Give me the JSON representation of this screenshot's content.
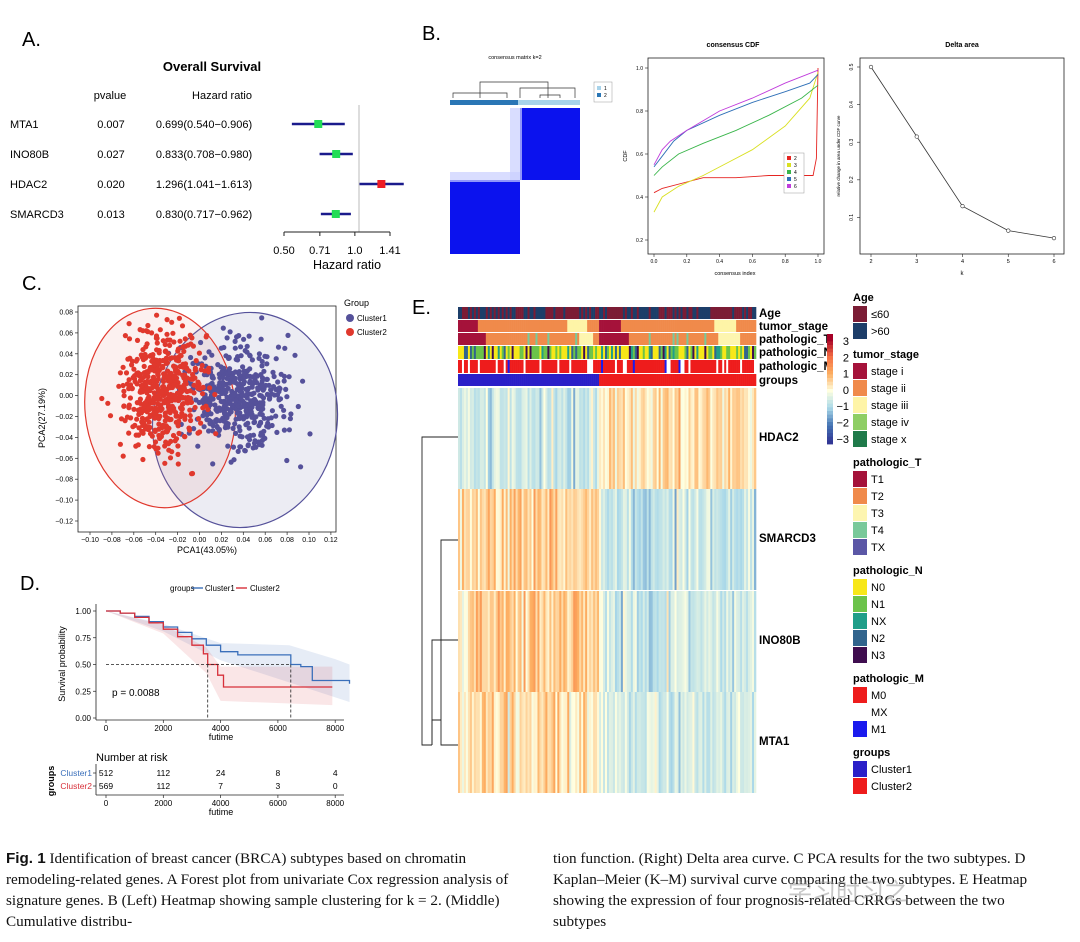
{
  "panels": {
    "A": {
      "letter": "A.",
      "title": "Overall Survival",
      "col_pvalue": "pvalue",
      "col_hr": "Hazard ratio",
      "rows": [
        {
          "gene": "MTA1",
          "pvalue": "0.007",
          "hr_text": "0.699(0.540−0.906)",
          "hr": 0.699,
          "lo": 0.54,
          "hi": 0.906,
          "color": "#22dd55"
        },
        {
          "gene": "INO80B",
          "pvalue": "0.027",
          "hr_text": "0.833(0.708−0.980)",
          "hr": 0.833,
          "lo": 0.708,
          "hi": 0.98,
          "color": "#22dd55"
        },
        {
          "gene": "HDAC2",
          "pvalue": "0.020",
          "hr_text": "1.296(1.041−1.613)",
          "hr": 1.296,
          "lo": 1.041,
          "hi": 1.613,
          "color": "#ee1c24"
        },
        {
          "gene": "SMARCD3",
          "pvalue": "0.013",
          "hr_text": "0.830(0.717−0.962)",
          "hr": 0.83,
          "lo": 0.717,
          "hi": 0.962,
          "color": "#22dd55"
        }
      ],
      "xticks": [
        "0.50",
        "0.71",
        "1.0",
        "1.41"
      ],
      "xtick_values": [
        0.5,
        0.71,
        1.0,
        1.41
      ],
      "xlabel": "Hazard ratio"
    },
    "B": {
      "letter": "B.",
      "heatmap_title": "consensus matrix k=2",
      "legend": [
        "1",
        "2"
      ],
      "cdf": {
        "title": "consensus CDF",
        "xlabel": "consensus index",
        "ylabel": "CDF",
        "xticks": [
          "0.0",
          "0.2",
          "0.4",
          "0.6",
          "0.8",
          "1.0"
        ],
        "yticks": [
          "0.2",
          "0.4",
          "0.6",
          "0.8",
          "1.0"
        ],
        "legend": [
          "2",
          "3",
          "4",
          "5",
          "6"
        ],
        "colors": [
          "#e52421",
          "#d9e021",
          "#39b54a",
          "#2e6fb7",
          "#c03cdc"
        ]
      },
      "delta": {
        "title": "Delta area",
        "xlabel": "k",
        "ylabel": "relative change in area under CDF curve",
        "xticks": [
          "2",
          "3",
          "4",
          "5",
          "6"
        ],
        "yticks": [
          "0.1",
          "0.2",
          "0.3",
          "0.4",
          "0.5"
        ]
      }
    },
    "C": {
      "letter": "C.",
      "xlabel": "PCA1(43.05%)",
      "ylabel": "PCA2(27.19%)",
      "legend_title": "Group",
      "legend": [
        {
          "name": "Cluster1",
          "color": "#55519a"
        },
        {
          "name": "Cluster2",
          "color": "#e0382d"
        }
      ],
      "xticks": [
        "−0.10",
        "−0.08",
        "−0.06",
        "−0.04",
        "−0.02",
        "0.00",
        "0.02",
        "0.04",
        "0.06",
        "0.08",
        "0.10",
        "0.12"
      ],
      "yticks": [
        "0.08",
        "0.06",
        "0.04",
        "0.02",
        "0.00",
        "−0.02",
        "−0.04",
        "−0.06",
        "−0.08",
        "−0.10",
        "−0.12"
      ]
    },
    "D": {
      "letter": "D.",
      "legend_title": "groups",
      "legend": [
        {
          "name": "Cluster1",
          "color": "#3a6fba"
        },
        {
          "name": "Cluster2",
          "color": "#d7303a"
        }
      ],
      "ylabel": "Survival probability",
      "yticks": [
        "1.00",
        "0.75",
        "0.50",
        "0.25",
        "0.00"
      ],
      "xticks": [
        "0",
        "2000",
        "4000",
        "6000",
        "8000"
      ],
      "xlabel": "futime",
      "pvalue": "p = 0.0088",
      "risk_title": "Number at risk",
      "risk_ylabel": "groups",
      "risk_rows": [
        {
          "name": "Cluster1",
          "values": [
            "512",
            "112",
            "24",
            "8",
            "4"
          ],
          "color": "#3a6fba"
        },
        {
          "name": "Cluster2",
          "values": [
            "569",
            "112",
            "7",
            "3",
            "0"
          ],
          "color": "#d7303a"
        }
      ]
    },
    "E": {
      "letter": "E.",
      "annotation_rows": [
        "Age",
        "tumor_stage",
        "pathologic_T",
        "pathologic_N",
        "pathologic_M",
        "groups"
      ],
      "genes": [
        "HDAC2",
        "SMARCD3",
        "INO80B",
        "MTA1"
      ],
      "scale_ticks": [
        "3",
        "2",
        "1",
        "0",
        "−1",
        "−2",
        "−3"
      ],
      "legends": [
        {
          "title": "Age",
          "items": [
            {
              "label": "≤60",
              "color": "#7b1c35"
            },
            {
              "label": ">60",
              "color": "#1d3e69"
            }
          ]
        },
        {
          "title": "tumor_stage",
          "items": [
            {
              "label": "stage i",
              "color": "#a5123a"
            },
            {
              "label": "stage ii",
              "color": "#f08a4b"
            },
            {
              "label": "stage iii",
              "color": "#fef4a7"
            },
            {
              "label": "stage iv",
              "color": "#8ece64"
            },
            {
              "label": "stage x",
              "color": "#1f7a4a"
            }
          ]
        },
        {
          "title": "pathologic_T",
          "items": [
            {
              "label": "T1",
              "color": "#a5123a"
            },
            {
              "label": "T2",
              "color": "#f08a4b"
            },
            {
              "label": "T3",
              "color": "#fdf5b0"
            },
            {
              "label": "T4",
              "color": "#79c99a"
            },
            {
              "label": "TX",
              "color": "#5b57a6"
            }
          ]
        },
        {
          "title": "pathologic_N",
          "items": [
            {
              "label": "N0",
              "color": "#f7e718"
            },
            {
              "label": "N1",
              "color": "#6bc34a"
            },
            {
              "label": "NX",
              "color": "#1f9e89"
            },
            {
              "label": "N2",
              "color": "#31648d"
            },
            {
              "label": "N3",
              "color": "#3f0d4f"
            }
          ]
        },
        {
          "title": "pathologic_M",
          "items": [
            {
              "label": "M0",
              "color": "#ee1c1c"
            },
            {
              "label": "MX",
              "color": "#ffffff"
            },
            {
              "label": "M1",
              "color": "#1a1aee"
            }
          ]
        },
        {
          "title": "groups",
          "items": [
            {
              "label": "Cluster1",
              "color": "#2a1fc8"
            },
            {
              "label": "Cluster2",
              "color": "#ee1c1c"
            }
          ]
        }
      ]
    }
  },
  "caption": {
    "fig_label": "Fig. 1",
    "left_text": "Identification of breast cancer (BRCA) subtypes based on chromatin remodeling-related genes. A Forest plot from univariate Cox regression analysis of signature genes. B (Left) Heatmap showing sample clustering for k = 2. (Middle) Cumulative distribu-",
    "right_text": "tion function. (Right) Delta area curve. C PCA results for the two subtypes. D Kaplan–Meier (K–M) survival curve comparing the two subtypes. E Heatmap showing the expression of four prognosis-related CRRGs between the two subtypes"
  },
  "watermark": "学习时习之"
}
